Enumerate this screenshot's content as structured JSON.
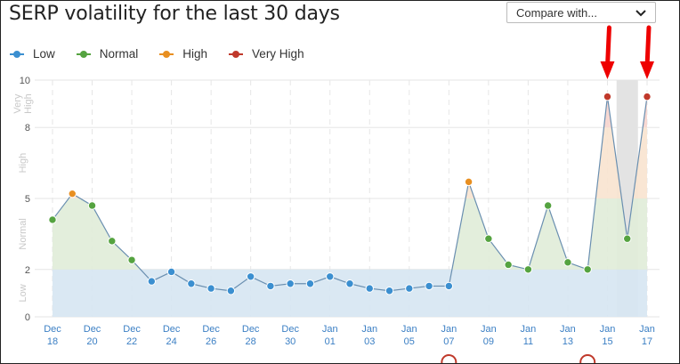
{
  "title": "SERP volatility for the last 30 days",
  "compare": {
    "label": "Compare with...",
    "icon": "chevron-down-icon"
  },
  "legend": [
    {
      "label": "Low",
      "color": "#3b8fd0"
    },
    {
      "label": "Normal",
      "color": "#55a340"
    },
    {
      "label": "High",
      "color": "#e88f21"
    },
    {
      "label": "Very High",
      "color": "#c0392b"
    }
  ],
  "colors": {
    "low_band": "#d6e6f2",
    "normal_band": "#e0ecd8",
    "high_band": "#f8e3cf",
    "very_high_band": "#f6d4cd",
    "line": "#6a8fb0",
    "grid": "#e6e6e6",
    "highlight": "#e3e3e3",
    "arrow": "#ee0000",
    "axis_text": "#3b7fc4",
    "band_text": "#c8c8c8"
  },
  "chart_data": {
    "type": "line",
    "ylim": [
      0,
      10
    ],
    "y_ticks": [
      "0",
      "2",
      "5",
      "8",
      "10"
    ],
    "band_labels": [
      "Low",
      "Normal",
      "High",
      "Very High"
    ],
    "x_tick_labels": [
      [
        "Dec",
        "18"
      ],
      [
        "Dec",
        "20"
      ],
      [
        "Dec",
        "22"
      ],
      [
        "Dec",
        "24"
      ],
      [
        "Dec",
        "26"
      ],
      [
        "Dec",
        "28"
      ],
      [
        "Dec",
        "30"
      ],
      [
        "Jan",
        "01"
      ],
      [
        "Jan",
        "03"
      ],
      [
        "Jan",
        "05"
      ],
      [
        "Jan",
        "07"
      ],
      [
        "Jan",
        "09"
      ],
      [
        "Jan",
        "11"
      ],
      [
        "Jan",
        "13"
      ],
      [
        "Jan",
        "15"
      ],
      [
        "Jan",
        "17"
      ]
    ],
    "x_tick_index": [
      0,
      2,
      4,
      6,
      8,
      10,
      12,
      14,
      16,
      18,
      20,
      22,
      24,
      26,
      28,
      30
    ],
    "series": [
      {
        "values": [
          4.1,
          5.2,
          4.7,
          3.2,
          2.4,
          1.5,
          1.9,
          1.4,
          1.2,
          1.1,
          1.7,
          1.3,
          1.4,
          1.4,
          1.7,
          1.4,
          1.2,
          1.1,
          1.2,
          1.3,
          1.3,
          5.7,
          3.3,
          2.2,
          2.0,
          4.7,
          2.3,
          2.0,
          9.3,
          3.3,
          9.3
        ],
        "levels": [
          "Normal",
          "High",
          "Normal",
          "Normal",
          "Normal",
          "Low",
          "Low",
          "Low",
          "Low",
          "Low",
          "Low",
          "Low",
          "Low",
          "Low",
          "Low",
          "Low",
          "Low",
          "Low",
          "Low",
          "Low",
          "Low",
          "High",
          "Normal",
          "Normal",
          "Normal",
          "Normal",
          "Normal",
          "Normal",
          "Very High",
          "Normal",
          "Very High"
        ]
      }
    ],
    "highlight_index": 29,
    "arrow_indices": [
      28,
      30
    ],
    "marker_indices": [
      20,
      27
    ]
  }
}
